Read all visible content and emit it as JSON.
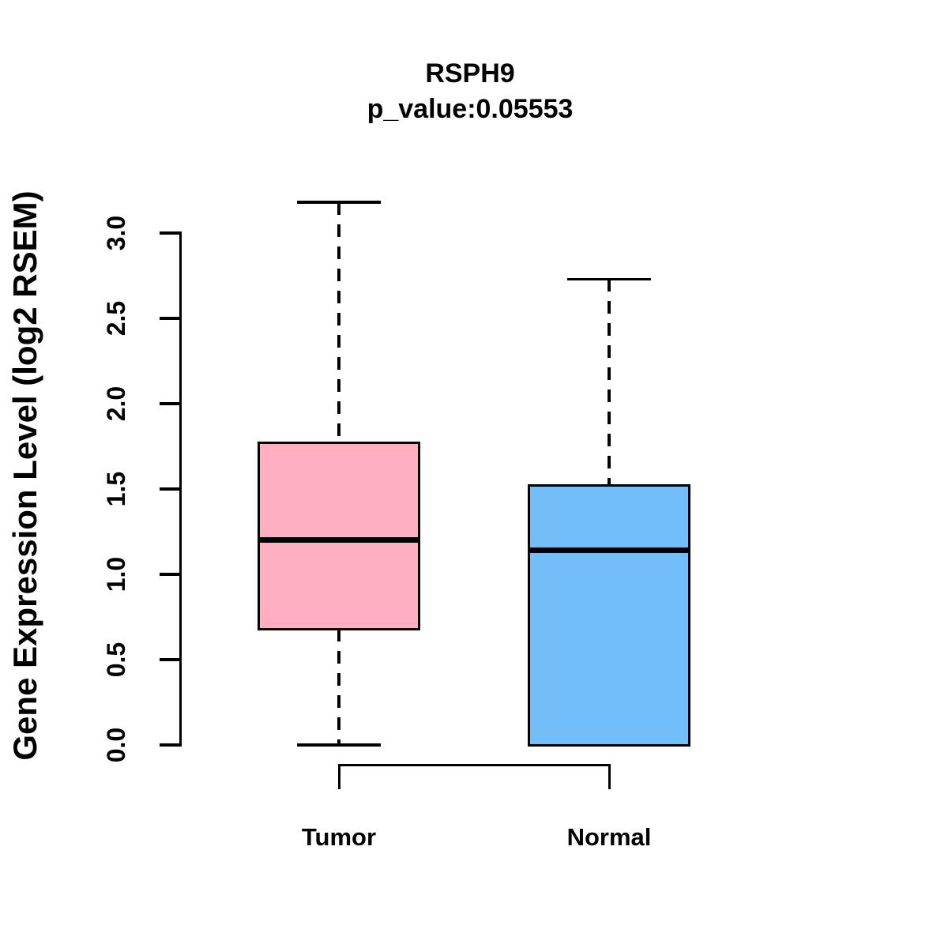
{
  "chart_data": {
    "type": "boxplot",
    "title": "RSPH9",
    "subtitle": "p_value:0.05553",
    "p_value": 0.05553,
    "gene": "RSPH9",
    "ylabel": "Gene Expression Level (log2 RSEM)",
    "ylim": [
      0.0,
      3.0
    ],
    "yticks": [
      {
        "value": 0.0,
        "label": "0.0"
      },
      {
        "value": 0.5,
        "label": "0.5"
      },
      {
        "value": 1.0,
        "label": "1.0"
      },
      {
        "value": 1.5,
        "label": "1.5"
      },
      {
        "value": 2.0,
        "label": "2.0"
      },
      {
        "value": 2.5,
        "label": "2.5"
      },
      {
        "value": 3.0,
        "label": "3.0"
      }
    ],
    "grid": false,
    "legend": "none",
    "groups": [
      {
        "label": "Tumor",
        "fill_color": "#FFAFC0",
        "stats": {
          "lower_whisker": 0.0,
          "q1": 0.68,
          "median": 1.2,
          "q3": 1.77,
          "upper_whisker": 3.18
        }
      },
      {
        "label": "Normal",
        "fill_color": "#73BEF8",
        "stats": {
          "lower_whisker": 0.0,
          "q1": 0.0,
          "median": 1.14,
          "q3": 1.52,
          "upper_whisker": 2.73
        }
      }
    ],
    "comparison_bracket": {
      "from": "Tumor",
      "to": "Normal"
    },
    "line_color": "#000000"
  }
}
